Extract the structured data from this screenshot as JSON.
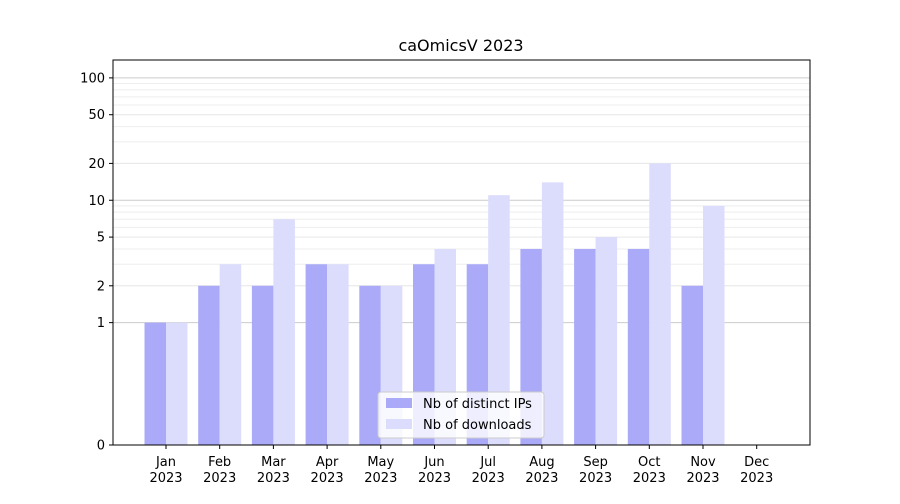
{
  "chart_data": {
    "type": "bar",
    "title": "caOmicsV 2023",
    "xlabel": "",
    "ylabel": "",
    "y_scale": "symlog",
    "ylim": [
      0,
      140
    ],
    "yticks": [
      0,
      1,
      2,
      5,
      10,
      20,
      50,
      100
    ],
    "categories": [
      "Jan\n2023",
      "Feb\n2023",
      "Mar\n2023",
      "Apr\n2023",
      "May\n2023",
      "Jun\n2023",
      "Jul\n2023",
      "Aug\n2023",
      "Sep\n2023",
      "Oct\n2023",
      "Nov\n2023",
      "Dec\n2023"
    ],
    "series": [
      {
        "name": "Nb of distinct IPs",
        "color": "#aaaaf8",
        "values": [
          1,
          2,
          2,
          3,
          2,
          3,
          3,
          4,
          4,
          4,
          2,
          0
        ]
      },
      {
        "name": "Nb of downloads",
        "color": "#dcdcfc",
        "values": [
          1,
          3,
          7,
          3,
          2,
          4,
          11,
          14,
          5,
          20,
          9,
          0
        ]
      }
    ],
    "grid": true,
    "legend_position": "lower-center"
  }
}
